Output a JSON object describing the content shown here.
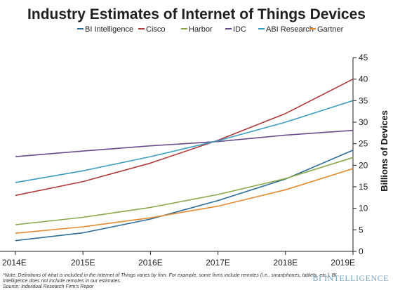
{
  "chart_data": {
    "type": "line",
    "title": "Industry Estimates of Internet of Things Devices",
    "ylabel": "Billions of Devices",
    "xlabel": "",
    "categories": [
      "2014E",
      "2015E",
      "2016E",
      "2017E",
      "2018E",
      "2019E"
    ],
    "ylim": [
      0,
      45
    ],
    "yticks": [
      0,
      5,
      10,
      15,
      20,
      25,
      30,
      35,
      40,
      45
    ],
    "y_axis_side": "right",
    "grid": false,
    "legend_position": "top",
    "series": [
      {
        "name": "BI Intelligence",
        "color": "#2f6e9a",
        "values": [
          2.5,
          4.3,
          7.5,
          11.8,
          16.8,
          23.5
        ]
      },
      {
        "name": "Cisco",
        "color": "#b23a3a",
        "values": [
          13.0,
          16.2,
          20.5,
          25.8,
          32.0,
          40.0
        ]
      },
      {
        "name": "Harbor",
        "color": "#8aa84a",
        "values": [
          6.2,
          7.9,
          10.2,
          13.2,
          16.9,
          21.8
        ]
      },
      {
        "name": "IDC",
        "color": "#6a4b8c",
        "values": [
          22.0,
          23.3,
          24.5,
          25.5,
          27.0,
          28.1
        ]
      },
      {
        "name": "ABI Research",
        "color": "#3a9cc0",
        "values": [
          16.0,
          18.7,
          22.0,
          25.7,
          30.0,
          35.0
        ]
      },
      {
        "name": "Gartner",
        "color": "#e38b2e",
        "values": [
          4.2,
          5.7,
          7.8,
          10.5,
          14.3,
          19.2
        ]
      }
    ]
  },
  "footnote": {
    "line1": "*Note: Definitions of what is included in the Internet of Things varies by firm. For example, some firms include remotes (i.e., smartphones, tablets, etc.). BI",
    "line2": "Intelligence does not include remotes in our estimates.",
    "line3": "Source: Individual Research Firm's Repor"
  },
  "brand": "BI INTELLIGENCE"
}
